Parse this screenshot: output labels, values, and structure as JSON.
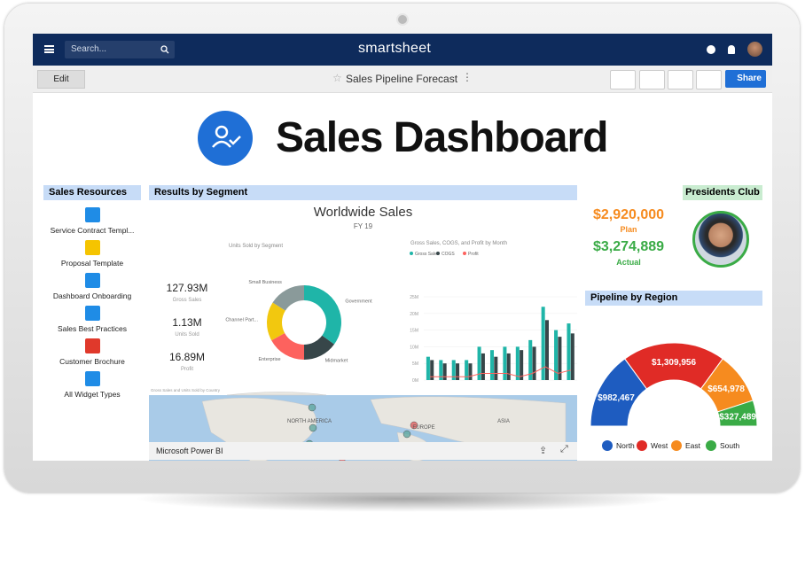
{
  "header": {
    "search_placeholder": "Search...",
    "brand": "smartsheet"
  },
  "toolbar": {
    "edit": "Edit",
    "sheet_title": "Sales Pipeline Forecast",
    "share": "Share"
  },
  "dashboard": {
    "title": "Sales Dashboard"
  },
  "resources": {
    "title": "Sales Resources",
    "items": [
      "Service Contract Templ...",
      "Proposal Template",
      "Dashboard Onboarding",
      "Sales Best Practices",
      "Customer Brochure",
      "All Widget Types"
    ]
  },
  "segment": {
    "title": "Results by Segment",
    "report_title": "Worldwide Sales",
    "report_subtitle": "FY 19",
    "kpis": [
      {
        "value": "127.93M",
        "label": "Gross Sales"
      },
      {
        "value": "1.13M",
        "label": "Units Sold"
      },
      {
        "value": "16.89M",
        "label": "Profit"
      }
    ],
    "map": {
      "title": "Gross Sales and Units Sold by Country",
      "labels": [
        "NORTH AMERICA",
        "EUROPE",
        "ASIA"
      ],
      "credit": "Bing"
    },
    "footer": "Microsoft Power BI"
  },
  "presidents": {
    "title": "Presidents Club",
    "plan": "$2,920,000",
    "plan_label": "Plan",
    "actual": "$3,274,889",
    "actual_label": "Actual"
  },
  "chart_data": [
    {
      "type": "donut",
      "title": "Units Sold by Segment",
      "categories": [
        "Government",
        "Midmarket",
        "Enterprise",
        "Channel Part...",
        "Small Business"
      ],
      "values": [
        35,
        15,
        17,
        17,
        16
      ],
      "colors": [
        "#1fb5a8",
        "#374649",
        "#fd625e",
        "#f2c80f",
        "#8a9a9a"
      ]
    },
    {
      "type": "bar",
      "title": "Gross Sales, COGS, and Profit by Month",
      "ylim": [
        0,
        25
      ],
      "yticks": [
        {
          "value": 0,
          "label": "0M"
        },
        {
          "value": 5,
          "label": "5M"
        },
        {
          "value": 10,
          "label": "10M"
        },
        {
          "value": 15,
          "label": "15M"
        },
        {
          "value": 20,
          "label": "20M"
        },
        {
          "value": 25,
          "label": "25M"
        }
      ],
      "series": [
        {
          "name": "Gross Sales",
          "color": "#1fb5a8",
          "values": [
            7,
            6,
            6,
            6,
            10,
            9,
            10,
            10,
            12,
            22,
            15,
            17
          ]
        },
        {
          "name": "COGS",
          "color": "#374649",
          "values": [
            6,
            5,
            5,
            5,
            8,
            7,
            8,
            9,
            10,
            18,
            13,
            14
          ]
        },
        {
          "name": "Profit",
          "color": "#fd625e",
          "values": [
            1,
            1,
            1,
            1,
            2,
            2,
            2,
            1,
            2,
            4,
            2,
            3
          ]
        }
      ]
    },
    {
      "type": "gauge",
      "title": "Pipeline by Region",
      "categories": [
        "North",
        "West",
        "East",
        "South"
      ],
      "values": [
        982467,
        1309956,
        654978,
        327489
      ],
      "value_labels": [
        "$982,467",
        "$1,309,956",
        "$654,978",
        "$327,489"
      ],
      "colors": [
        "#1e5cc0",
        "#e02b26",
        "#f68b1f",
        "#3aab46"
      ]
    }
  ]
}
